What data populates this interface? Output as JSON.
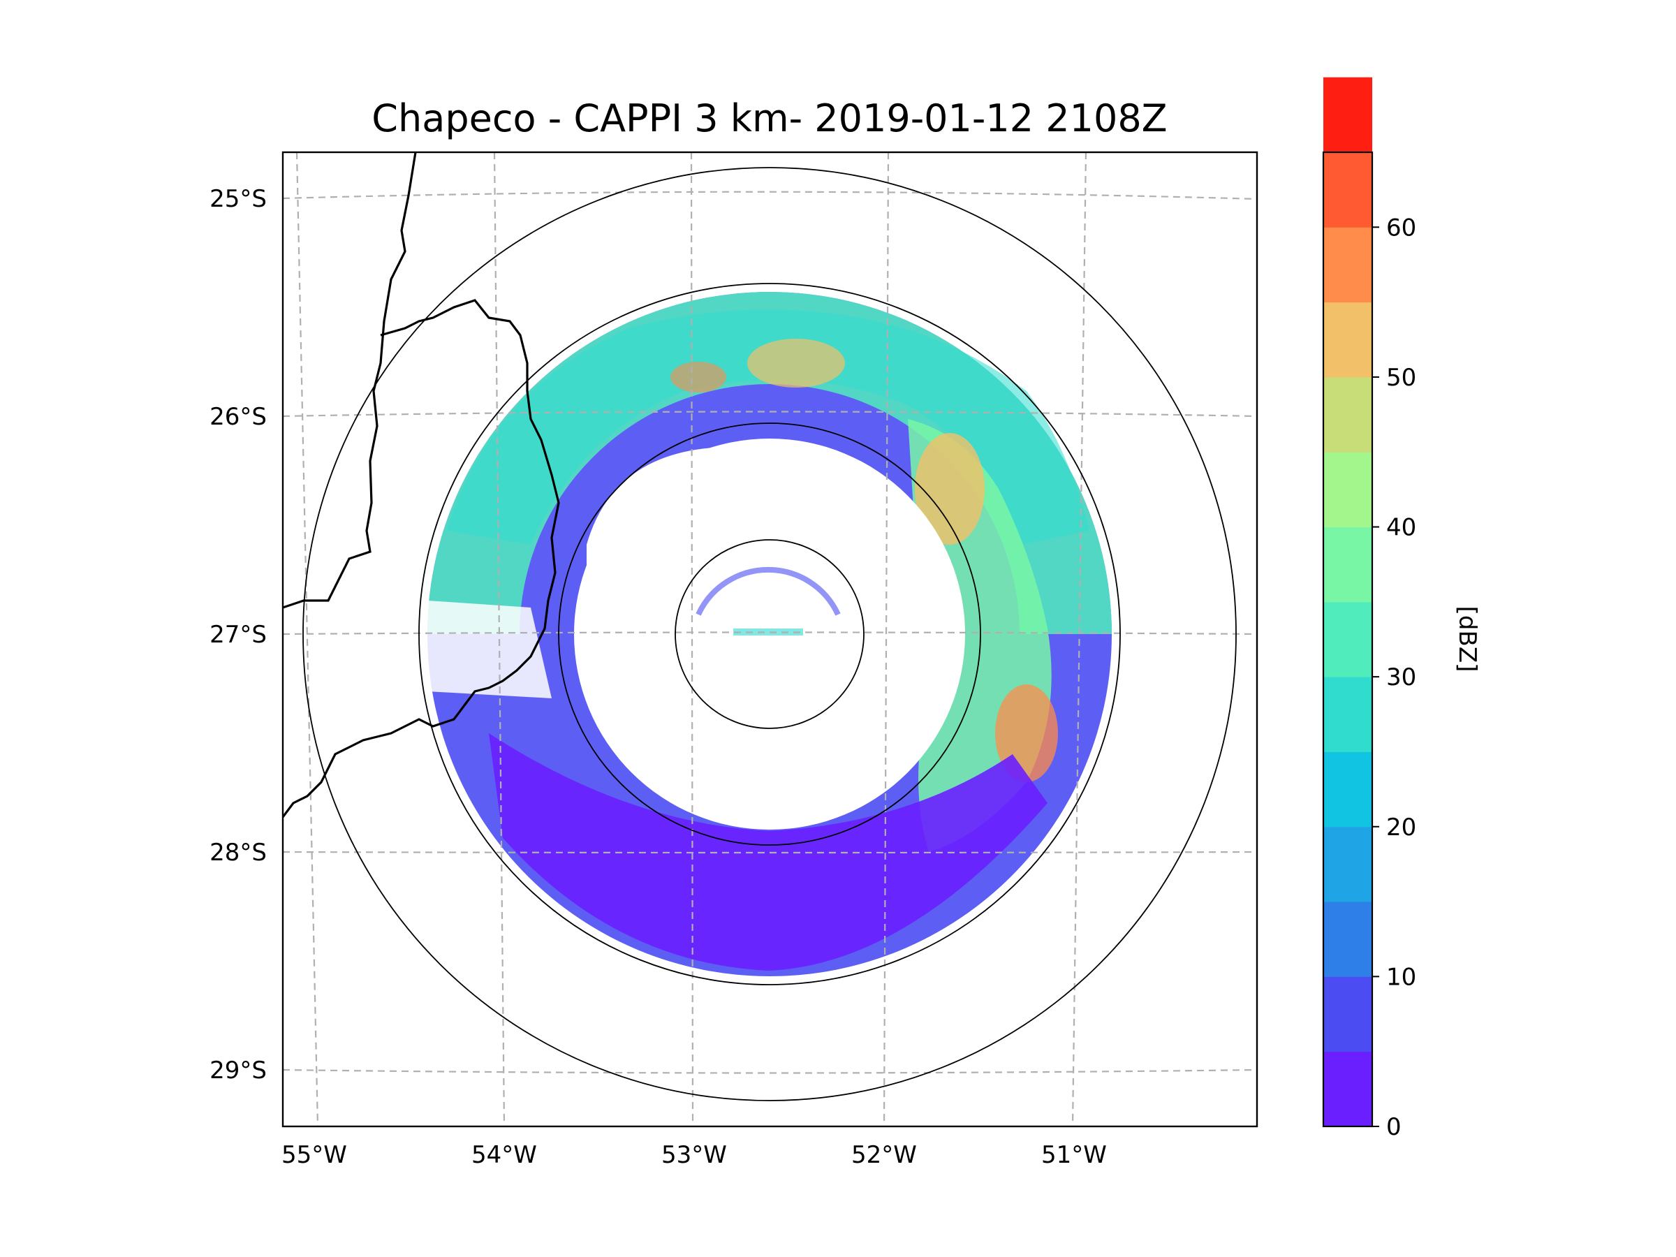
{
  "title": "Chapeco - CAPPI 3 km- 2019-01-12 2108Z",
  "map": {
    "lat_labels": [
      "25°S",
      "26°S",
      "27°S",
      "28°S",
      "29°S"
    ],
    "lon_labels": [
      "55°W",
      "54°W",
      "53°W",
      "52°W",
      "51°W"
    ],
    "range_rings": [
      "inner",
      "middle",
      "outer-250km",
      "outer-boundary"
    ]
  },
  "colorbar": {
    "label": "[dBZ]",
    "tick_labels": [
      "0",
      "10",
      "20",
      "30",
      "40",
      "50",
      "60"
    ],
    "min": 0,
    "max": 65,
    "step": 5,
    "colors": [
      "#6a1fff",
      "#4b4cf2",
      "#2f7fe8",
      "#1fa4e6",
      "#10c4e2",
      "#2fdcce",
      "#50ecbc",
      "#78f6a6",
      "#a2f68c",
      "#c8dc78",
      "#f2c068",
      "#ff8c4a",
      "#ff5a32",
      "#ff1f12"
    ]
  }
}
